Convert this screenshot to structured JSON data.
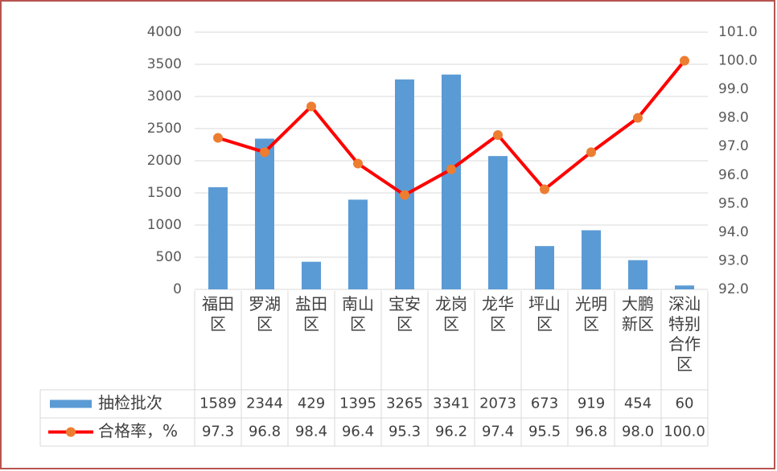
{
  "chart_data": {
    "type": "bar-line",
    "categories": [
      "福田区",
      "罗湖区",
      "盐田区",
      "南山区",
      "宝安区",
      "龙岗区",
      "龙华区",
      "坪山区",
      "光明区",
      "大鹏新区",
      "深汕特别合作区"
    ],
    "series": [
      {
        "name": "抽检批次",
        "type": "bar",
        "color": "#5b9bd5",
        "values": [
          1589,
          2344,
          429,
          1395,
          3265,
          3341,
          2073,
          673,
          919,
          454,
          60
        ]
      },
      {
        "name": "合格率，%",
        "type": "line",
        "axis": "y2",
        "color": "#ff0000",
        "marker_color": "#ed7d31",
        "values": [
          97.3,
          96.8,
          98.4,
          96.4,
          95.3,
          96.2,
          97.4,
          95.5,
          96.8,
          98,
          100
        ],
        "value_labels": [
          "97.3",
          "96.8",
          "98.4",
          "96.4",
          "95.3",
          "96.2",
          "97.4",
          "95.5",
          "96.8",
          "98.0",
          "100.0"
        ]
      }
    ],
    "ylim": [
      0,
      4000
    ],
    "yticks": [
      0,
      500,
      1000,
      1500,
      2000,
      2500,
      3000,
      3500,
      4000
    ],
    "y2lim": [
      92,
      101
    ],
    "y2ticks": [
      {
        "value": 92,
        "label": "92.0"
      },
      {
        "value": 93,
        "label": "93.0"
      },
      {
        "value": 94,
        "label": "94.0"
      },
      {
        "value": 95,
        "label": "95.0"
      },
      {
        "value": 96,
        "label": "96.0"
      },
      {
        "value": 97,
        "label": "97.0"
      },
      {
        "value": 98,
        "label": "98.0"
      },
      {
        "value": 99,
        "label": "99.0"
      },
      {
        "value": 100,
        "label": "100.0"
      },
      {
        "value": 101,
        "label": "101.0"
      }
    ],
    "grid": true
  }
}
